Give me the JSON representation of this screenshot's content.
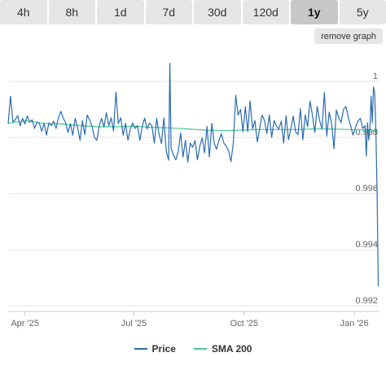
{
  "range_tabs": [
    "4h",
    "8h",
    "1d",
    "7d",
    "30d",
    "120d",
    "1y",
    "5y"
  ],
  "active_tab": "1y",
  "remove_graph_label": "remove graph",
  "colors": {
    "price": "#2b6cb0",
    "sma": "#48c98f",
    "grid": "#e6e6e6"
  },
  "legend": {
    "price": "Price",
    "sma": "SMA 200"
  },
  "chart_data": {
    "type": "line",
    "y_ticks": [
      "1",
      "0.998",
      "0.996",
      "0.994",
      "0.992"
    ],
    "y_tick_values": [
      1.0,
      0.998,
      0.996,
      0.994,
      0.992
    ],
    "ylim": [
      0.9918,
      1.0011
    ],
    "x_ticks": [
      "Apr '25",
      "Jul '25",
      "Oct '25",
      "Jan '26"
    ],
    "x_tick_days": [
      14,
      105,
      197,
      289
    ],
    "xlim_days": [
      0,
      310
    ],
    "series": [
      {
        "name": "Price",
        "values": [
          [
            0,
            0.99848
          ],
          [
            2,
            0.99947
          ],
          [
            4,
            0.99855
          ],
          [
            6,
            0.99863
          ],
          [
            8,
            0.99878
          ],
          [
            10,
            0.99841
          ],
          [
            12,
            0.99868
          ],
          [
            14,
            0.99848
          ],
          [
            16,
            0.99877
          ],
          [
            18,
            0.99854
          ],
          [
            20,
            0.99863
          ],
          [
            22,
            0.99832
          ],
          [
            24,
            0.99854
          ],
          [
            26,
            0.99852
          ],
          [
            28,
            0.99822
          ],
          [
            30,
            0.9985
          ],
          [
            32,
            0.99808
          ],
          [
            34,
            0.99851
          ],
          [
            36,
            0.99842
          ],
          [
            38,
            0.99858
          ],
          [
            40,
            0.99832
          ],
          [
            42,
            0.9987
          ],
          [
            44,
            0.99893
          ],
          [
            46,
            0.99869
          ],
          [
            48,
            0.99852
          ],
          [
            50,
            0.99818
          ],
          [
            52,
            0.99848
          ],
          [
            54,
            0.99808
          ],
          [
            56,
            0.99868
          ],
          [
            58,
            0.99835
          ],
          [
            60,
            0.9979
          ],
          [
            62,
            0.9986
          ],
          [
            64,
            0.9981
          ],
          [
            66,
            0.9988
          ],
          [
            68,
            0.99862
          ],
          [
            70,
            0.9984
          ],
          [
            72,
            0.998
          ],
          [
            74,
            0.9979
          ],
          [
            76,
            0.9984
          ],
          [
            78,
            0.99868
          ],
          [
            80,
            0.99837
          ],
          [
            82,
            0.99888
          ],
          [
            84,
            0.99842
          ],
          [
            86,
            0.9987
          ],
          [
            88,
            0.99823
          ],
          [
            90,
            0.99962
          ],
          [
            92,
            0.99849
          ],
          [
            94,
            0.9987
          ],
          [
            96,
            0.99808
          ],
          [
            98,
            0.9985
          ],
          [
            100,
            0.9979
          ],
          [
            102,
            0.9983
          ],
          [
            104,
            0.99852
          ],
          [
            106,
            0.99832
          ],
          [
            108,
            0.99842
          ],
          [
            110,
            0.9979
          ],
          [
            112,
            0.9984
          ],
          [
            114,
            0.99869
          ],
          [
            116,
            0.9983
          ],
          [
            118,
            0.99851
          ],
          [
            120,
            0.99842
          ],
          [
            122,
            0.99779
          ],
          [
            124,
            0.99868
          ],
          [
            126,
            0.99812
          ],
          [
            128,
            0.99778
          ],
          [
            130,
            0.9987
          ],
          [
            132,
            0.9975
          ],
          [
            134,
            0.99719
          ],
          [
            135,
            1.00064
          ],
          [
            136,
            0.9976
          ],
          [
            138,
            0.99737
          ],
          [
            140,
            0.9972
          ],
          [
            142,
            0.9975
          ],
          [
            144,
            0.99816
          ],
          [
            146,
            0.9973
          ],
          [
            148,
            0.9979
          ],
          [
            150,
            0.99712
          ],
          [
            152,
            0.9978
          ],
          [
            154,
            0.99765
          ],
          [
            156,
            0.99789
          ],
          [
            158,
            0.9972
          ],
          [
            160,
            0.9977
          ],
          [
            162,
            0.99798
          ],
          [
            164,
            0.99745
          ],
          [
            166,
            0.99839
          ],
          [
            168,
            0.9973
          ],
          [
            170,
            0.9985
          ],
          [
            172,
            0.9978
          ],
          [
            174,
            0.99758
          ],
          [
            176,
            0.9979
          ],
          [
            178,
            0.99813
          ],
          [
            180,
            0.9978
          ],
          [
            182,
            0.9977
          ],
          [
            184,
            0.99752
          ],
          [
            186,
            0.99714
          ],
          [
            188,
            0.9978
          ],
          [
            190,
            0.9995
          ],
          [
            192,
            0.9988
          ],
          [
            194,
            0.999
          ],
          [
            196,
            0.9982
          ],
          [
            198,
            0.9991
          ],
          [
            200,
            0.9982
          ],
          [
            202,
            0.9993
          ],
          [
            204,
            0.9983
          ],
          [
            206,
            0.9986
          ],
          [
            208,
            0.99784
          ],
          [
            210,
            0.99832
          ],
          [
            212,
            0.9988
          ],
          [
            214,
            0.9986
          ],
          [
            216,
            0.99814
          ],
          [
            218,
            0.9988
          ],
          [
            220,
            0.998
          ],
          [
            222,
            0.9986
          ],
          [
            224,
            0.9984
          ],
          [
            226,
            0.9983
          ],
          [
            228,
            0.99858
          ],
          [
            230,
            0.9978
          ],
          [
            232,
            0.99878
          ],
          [
            234,
            0.99792
          ],
          [
            236,
            0.9983
          ],
          [
            238,
            0.99876
          ],
          [
            240,
            0.9982
          ],
          [
            242,
            0.9981
          ],
          [
            244,
            0.99902
          ],
          [
            246,
            0.99792
          ],
          [
            248,
            0.9988
          ],
          [
            250,
            0.99838
          ],
          [
            252,
            0.9993
          ],
          [
            254,
            0.9988
          ],
          [
            256,
            0.99818
          ],
          [
            258,
            0.9991
          ],
          [
            260,
            0.9986
          ],
          [
            262,
            0.9983
          ],
          [
            264,
            0.9996
          ],
          [
            266,
            0.99805
          ],
          [
            268,
            0.9989
          ],
          [
            270,
            0.9985
          ],
          [
            272,
            0.9976
          ],
          [
            274,
            0.99898
          ],
          [
            276,
            0.9987
          ],
          [
            278,
            0.99853
          ],
          [
            280,
            0.999
          ],
          [
            282,
            0.9991
          ],
          [
            284,
            0.9987
          ],
          [
            286,
            0.9984
          ],
          [
            288,
            0.99808
          ],
          [
            290,
            0.99837
          ],
          [
            292,
            0.99858
          ],
          [
            294,
            0.99868
          ],
          [
            296,
            0.99832
          ],
          [
            298,
            0.99842
          ],
          [
            299,
            0.99733
          ],
          [
            300,
            0.99852
          ],
          [
            301,
            0.9979
          ],
          [
            302,
            0.99832
          ],
          [
            303,
            0.99947
          ],
          [
            304,
            0.99852
          ],
          [
            305,
            0.9998
          ],
          [
            306,
            0.9996
          ],
          [
            307,
            0.9982
          ],
          [
            308,
            0.996
          ],
          [
            309,
            0.9927
          ]
        ]
      },
      {
        "name": "SMA 200",
        "values": [
          [
            0,
            0.9985
          ],
          [
            15,
            0.9986
          ],
          [
            30,
            0.9985
          ],
          [
            45,
            0.99848
          ],
          [
            60,
            0.99842
          ],
          [
            75,
            0.99838
          ],
          [
            90,
            0.99838
          ],
          [
            105,
            0.9984
          ],
          [
            120,
            0.99836
          ],
          [
            135,
            0.99834
          ],
          [
            150,
            0.9983
          ],
          [
            165,
            0.99826
          ],
          [
            180,
            0.99824
          ],
          [
            195,
            0.99826
          ],
          [
            210,
            0.99828
          ],
          [
            225,
            0.99828
          ],
          [
            240,
            0.99828
          ],
          [
            255,
            0.9983
          ],
          [
            270,
            0.9983
          ],
          [
            285,
            0.99828
          ],
          [
            300,
            0.99826
          ],
          [
            309,
            0.99822
          ]
        ]
      }
    ],
    "grid": true,
    "legend_position": "bottom-center"
  }
}
